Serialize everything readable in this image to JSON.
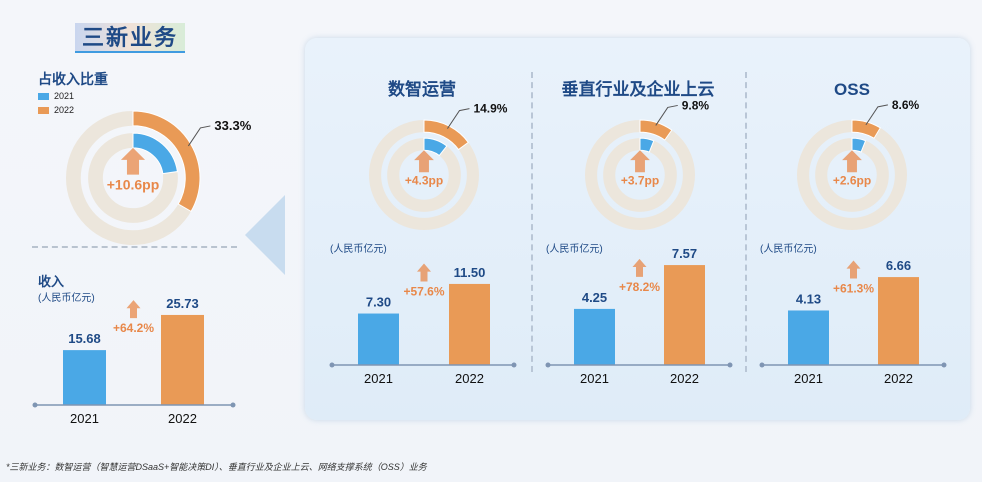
{
  "header": {
    "title": "三新业务"
  },
  "footnote": "*三新业务：数智运营（智慧运营DSaaS+智能决策DI）、垂直行业及企业上云、网络支撑系统（OSS）业务",
  "colors": {
    "y2021": "#4aa8e6",
    "y2022": "#e99a56",
    "ring_bg": "#ece6dc",
    "growth": "#e8884a",
    "text": "#1f4a86"
  },
  "chart_data": [
    {
      "type": "donut",
      "title": "占收入比重",
      "legend": [
        "2021",
        "2022"
      ],
      "series": [
        {
          "name": "2021",
          "value": 22.7
        },
        {
          "name": "2022",
          "value": 33.3
        }
      ],
      "label": "33.3%",
      "change_label": "+10.6pp"
    },
    {
      "type": "bar",
      "title": "收入",
      "unit": "(人民币亿元)",
      "categories": [
        "2021",
        "2022"
      ],
      "values": [
        15.68,
        25.73
      ],
      "value_labels": [
        "15.68",
        "25.73"
      ],
      "growth_label": "+64.2%"
    },
    {
      "type": "donut",
      "title": "数智运营",
      "series": [
        {
          "name": "2021",
          "value": 10.6
        },
        {
          "name": "2022",
          "value": 14.9
        }
      ],
      "label": "14.9%",
      "change_label": "+4.3pp"
    },
    {
      "type": "bar",
      "unit": "(人民币亿元)",
      "categories": [
        "2021",
        "2022"
      ],
      "values": [
        7.3,
        11.5
      ],
      "value_labels": [
        "7.30",
        "11.50"
      ],
      "growth_label": "+57.6%"
    },
    {
      "type": "donut",
      "title": "垂直行业及企业上云",
      "series": [
        {
          "name": "2021",
          "value": 6.1
        },
        {
          "name": "2022",
          "value": 9.8
        }
      ],
      "label": "9.8%",
      "change_label": "+3.7pp"
    },
    {
      "type": "bar",
      "unit": "(人民币亿元)",
      "categories": [
        "2021",
        "2022"
      ],
      "values": [
        4.25,
        7.57
      ],
      "value_labels": [
        "4.25",
        "7.57"
      ],
      "growth_label": "+78.2%"
    },
    {
      "type": "donut",
      "title": "OSS",
      "series": [
        {
          "name": "2021",
          "value": 6.0
        },
        {
          "name": "2022",
          "value": 8.6
        }
      ],
      "label": "8.6%",
      "change_label": "+2.6pp"
    },
    {
      "type": "bar",
      "unit": "(人民币亿元)",
      "categories": [
        "2021",
        "2022"
      ],
      "values": [
        4.13,
        6.66
      ],
      "value_labels": [
        "4.13",
        "6.66"
      ],
      "growth_label": "+61.3%"
    }
  ]
}
